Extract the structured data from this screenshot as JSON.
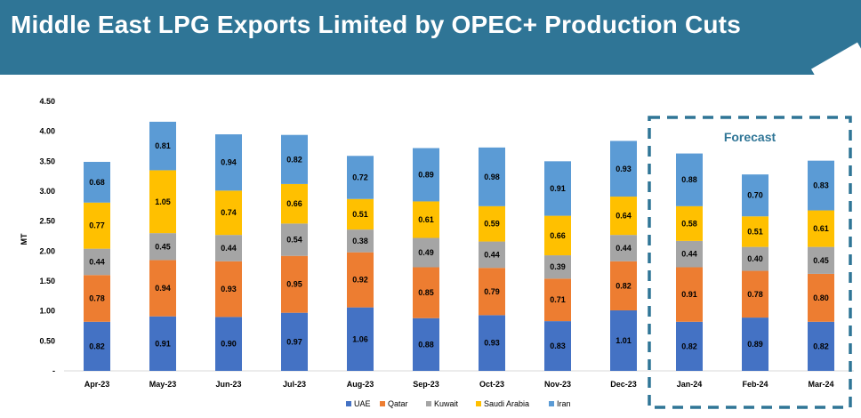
{
  "header": {
    "title": "Middle East LPG Exports Limited by OPEC+ Production Cuts"
  },
  "chart_data": {
    "type": "bar",
    "stacked": true,
    "ylabel": "MT",
    "ylim": [
      0,
      4.5
    ],
    "yticks": [
      "-",
      "0.50",
      "1.00",
      "1.50",
      "2.00",
      "2.50",
      "3.00",
      "3.50",
      "4.00",
      "4.50"
    ],
    "categories": [
      "Apr-23",
      "May-23",
      "Jun-23",
      "Jul-23",
      "Aug-23",
      "Sep-23",
      "Oct-23",
      "Nov-23",
      "Dec-23",
      "Jan-24",
      "Feb-24",
      "Mar-24"
    ],
    "series": [
      {
        "name": "UAE",
        "color": "#4472c4",
        "values": [
          0.82,
          0.91,
          0.9,
          0.97,
          1.06,
          0.88,
          0.93,
          0.83,
          1.01,
          0.82,
          0.89,
          0.82
        ]
      },
      {
        "name": "Qatar",
        "color": "#ed7d31",
        "values": [
          0.78,
          0.94,
          0.93,
          0.95,
          0.92,
          0.85,
          0.79,
          0.71,
          0.82,
          0.91,
          0.78,
          0.8
        ]
      },
      {
        "name": "Kuwait",
        "color": "#a5a5a5",
        "values": [
          0.44,
          0.45,
          0.44,
          0.54,
          0.38,
          0.49,
          0.44,
          0.39,
          0.44,
          0.44,
          0.4,
          0.45
        ]
      },
      {
        "name": "Saudi Arabia",
        "color": "#ffc000",
        "values": [
          0.77,
          1.05,
          0.74,
          0.66,
          0.51,
          0.61,
          0.59,
          0.66,
          0.64,
          0.58,
          0.51,
          0.61
        ]
      },
      {
        "name": "Iran",
        "color": "#5b9bd5",
        "values": [
          0.68,
          0.81,
          0.94,
          0.82,
          0.72,
          0.89,
          0.98,
          0.91,
          0.93,
          0.88,
          0.7,
          0.83
        ]
      }
    ],
    "annotation": {
      "label": "Forecast",
      "color": "#2f7596",
      "categories": [
        "Jan-24",
        "Feb-24",
        "Mar-24"
      ]
    },
    "legend_position": "bottom"
  }
}
